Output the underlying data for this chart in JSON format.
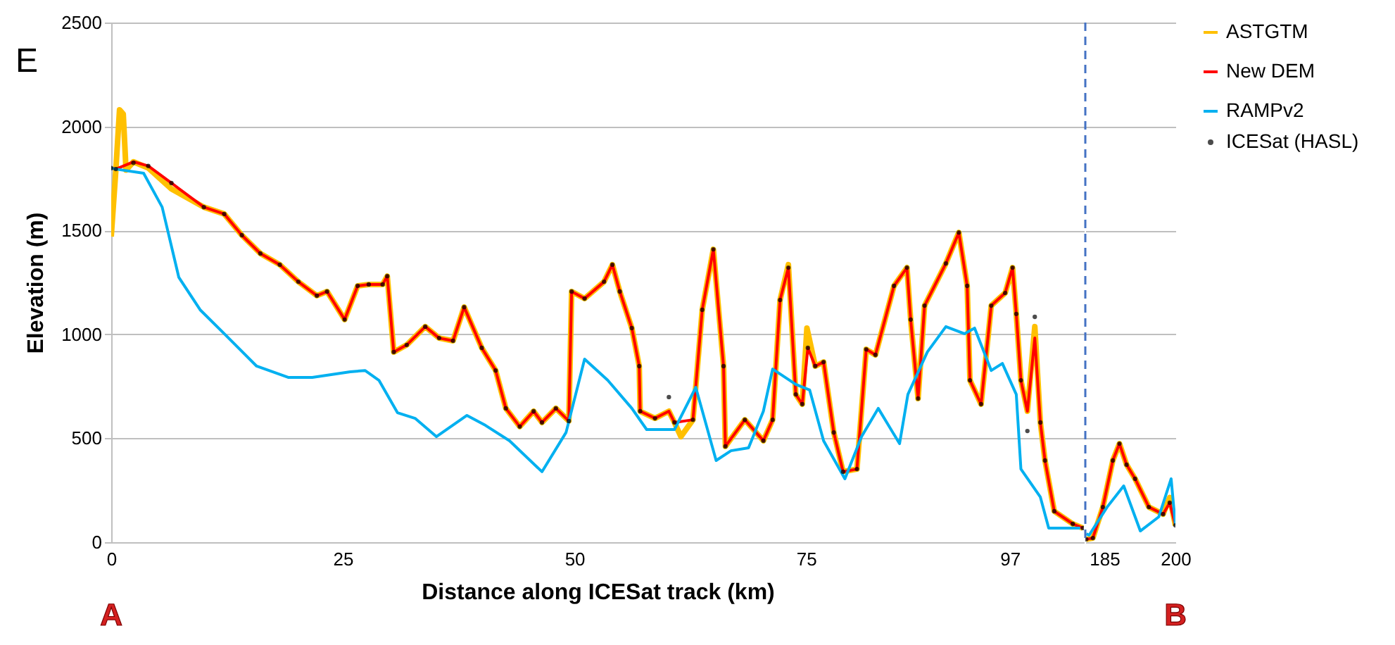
{
  "chart_data": [
    {
      "type": "line",
      "xlabel": "Distance along ICESat track (km)",
      "ylabel": "Elevation (m)",
      "xlim": [
        0,
        105
      ],
      "xticks": [
        0,
        25,
        50,
        75,
        97
      ],
      "ylim": [
        0,
        2500
      ],
      "yticks": [
        0,
        500,
        1000,
        1500,
        2000,
        2500
      ],
      "grid": "y",
      "tick_labels": "xy",
      "annotations": [
        "E",
        "A"
      ],
      "series": [
        {
          "color": "#ffc000",
          "x": [
            0,
            0.5,
            0.9,
            1.3,
            1.6,
            2.4,
            4,
            6.5,
            10,
            12.2,
            14.1,
            16.1,
            18.2,
            20.2,
            22.2,
            23.3,
            25.2,
            26.6,
            27.8,
            29.3,
            29.8,
            30.5,
            31.9,
            33.9,
            35.4,
            36.9,
            38.1,
            40,
            41.5,
            42.6,
            44.1,
            45.6,
            46.5,
            48,
            49.4,
            49.7,
            51.1,
            53.2,
            54.1,
            54.9,
            56.2,
            57,
            57.1,
            58.7,
            60.2,
            60.8,
            61.5,
            62.8,
            63.8,
            65,
            66.1,
            66.3,
            68.4,
            70.4,
            71.4,
            72.2,
            73.1,
            73.9,
            74.6,
            75.1,
            76,
            76.9,
            78,
            79,
            80.5,
            81.5,
            82.5,
            84.5,
            85.9,
            86.3,
            87.1,
            87.8,
            90.1,
            91.5,
            92.4,
            92.7,
            93.9,
            95,
            96.5,
            97.3,
            97.7,
            98.2,
            98.9,
            99.7,
            100.3,
            100.8,
            101.8,
            103.8,
            104.9
          ],
          "values": [
            1470,
            1790,
            2080,
            2060,
            1790,
            1830,
            1800,
            1700,
            1612,
            1579,
            1477,
            1389,
            1335,
            1253,
            1186,
            1206,
            1071,
            1233,
            1240,
            1240,
            1280,
            915,
            949,
            1037,
            982,
            969,
            1131,
            935,
            826,
            644,
            556,
            630,
            576,
            644,
            583,
            1206,
            1172,
            1253,
            1335,
            1206,
            1030,
            847,
            630,
            596,
            630,
            576,
            508,
            589,
            1118,
            1409,
            847,
            461,
            589,
            488,
            589,
            1165,
            1335,
            711,
            664,
            1030,
            847,
            867,
            528,
            339,
            352,
            928,
            901,
            1233,
            1321,
            1071,
            691,
            1138,
            1341,
            1490,
            1233,
            779,
            664,
            1138,
            1199,
            1321,
            1098,
            779,
            630,
            1037,
            576,
            393,
            149,
            88,
            68
          ]
        },
        {
          "color": "#ff0000",
          "x": [
            0,
            0.5,
            2.4,
            4,
            6.5,
            10,
            12.2,
            14.1,
            16.1,
            18.2,
            20.2,
            22.2,
            23.3,
            25.2,
            26.6,
            27.8,
            29.3,
            29.8,
            30.5,
            31.9,
            33.9,
            35.4,
            36.9,
            38.1,
            40,
            41.5,
            42.6,
            44.1,
            45.6,
            46.5,
            48,
            49.4,
            49.7,
            51.1,
            53.2,
            54.1,
            54.9,
            56.2,
            57,
            57.1,
            58.7,
            60.2,
            60.8,
            62.8,
            63.8,
            65,
            66.1,
            66.3,
            68.4,
            70.4,
            71.4,
            72.2,
            73.1,
            73.9,
            74.6,
            75.2,
            76,
            76.9,
            78,
            79,
            80.5,
            81.5,
            82.5,
            84.5,
            85.9,
            86.3,
            87.1,
            87.8,
            90.1,
            91.5,
            92.4,
            92.7,
            93.9,
            95,
            96.5,
            97.3,
            97.7,
            98.2,
            98.9,
            99.7,
            100.3,
            100.8,
            101.8,
            103.8,
            104.9
          ],
          "values": [
            1800,
            1795,
            1830,
            1810,
            1728,
            1612,
            1579,
            1477,
            1389,
            1335,
            1253,
            1186,
            1206,
            1071,
            1233,
            1240,
            1240,
            1280,
            915,
            949,
            1037,
            982,
            969,
            1131,
            935,
            826,
            644,
            556,
            630,
            576,
            644,
            583,
            1206,
            1172,
            1253,
            1335,
            1206,
            1030,
            847,
            630,
            596,
            630,
            576,
            589,
            1118,
            1409,
            847,
            461,
            589,
            488,
            589,
            1165,
            1321,
            711,
            664,
            935,
            847,
            867,
            528,
            339,
            352,
            928,
            901,
            1233,
            1321,
            1071,
            691,
            1138,
            1341,
            1490,
            1233,
            779,
            664,
            1138,
            1199,
            1321,
            1098,
            779,
            630,
            982,
            576,
            393,
            149,
            88,
            68
          ]
        },
        {
          "color": "#00b0f0",
          "x": [
            0,
            0.5,
            3.5,
            5.5,
            7.3,
            9.6,
            12.2,
            15.7,
            19.1,
            21.7,
            25.8,
            27.4,
            28.9,
            30.9,
            32.8,
            35.1,
            38.4,
            40.4,
            43,
            46.5,
            49.1,
            51.1,
            53.6,
            56.2,
            57.8,
            60.8,
            63.1,
            65.3,
            66.9,
            68.8,
            70.4,
            71.4,
            73.9,
            75.4,
            76.9,
            79.2,
            81,
            82.8,
            85.1,
            86,
            88.1,
            90.1,
            92.1,
            93.2,
            95,
            96.2,
            97.7,
            98.2,
            100.3,
            101.2,
            104.6
          ],
          "values": [
            1800,
            1795,
            1775,
            1612,
            1274,
            1118,
            1003,
            847,
            793,
            793,
            820,
            826,
            779,
            623,
            596,
            508,
            610,
            562,
            488,
            339,
            528,
            881,
            779,
            644,
            542,
            542,
            745,
            393,
            440,
            454,
            630,
            833,
            759,
            732,
            488,
            305,
            508,
            644,
            474,
            711,
            915,
            1037,
            1003,
            1030,
            826,
            860,
            711,
            352,
            217,
            68,
            68
          ]
        },
        {
          "type": "scatter",
          "marker": "circle",
          "color": "#000000",
          "x": [
            0,
            0.5,
            2.4,
            4,
            6.5,
            10,
            12.2,
            14.1,
            16.1,
            18.2,
            20.2,
            22.2,
            23.3,
            25.2,
            26.6,
            27.8,
            29.3,
            29.8,
            30.5,
            31.9,
            33.9,
            35.4,
            36.9,
            38.1,
            40,
            41.5,
            42.6,
            44.1,
            45.6,
            46.5,
            48,
            49.4,
            49.7,
            51.1,
            53.2,
            54.1,
            54.9,
            56.2,
            57,
            57.1,
            58.7,
            60.2,
            60.8,
            62.8,
            63.8,
            65,
            66.1,
            66.3,
            68.4,
            70.4,
            71.4,
            72.2,
            73.1,
            73.9,
            74.6,
            75.2,
            76,
            76.9,
            78,
            79,
            80.5,
            81.5,
            82.5,
            84.5,
            85.9,
            86.3,
            87.1,
            87.8,
            90.1,
            91.5,
            92.4,
            92.7,
            93.9,
            95,
            96.5,
            97.3,
            97.7,
            98.2,
            98.9,
            99.7,
            100.3,
            100.8,
            101.8,
            103.8,
            104.9
          ],
          "values": [
            1800,
            1795,
            1825,
            1810,
            1728,
            1612,
            1579,
            1477,
            1389,
            1335,
            1253,
            1186,
            1206,
            1071,
            1233,
            1240,
            1240,
            1280,
            915,
            949,
            1037,
            982,
            969,
            1131,
            935,
            826,
            644,
            556,
            630,
            576,
            644,
            583,
            1206,
            1172,
            1253,
            1335,
            1206,
            1030,
            847,
            630,
            596,
            698,
            576,
            589,
            1118,
            1409,
            847,
            461,
            589,
            488,
            589,
            1165,
            1321,
            711,
            664,
            935,
            847,
            867,
            528,
            339,
            352,
            928,
            901,
            1233,
            1321,
            1071,
            691,
            1138,
            1341,
            1490,
            1233,
            779,
            664,
            1138,
            1199,
            1321,
            1098,
            779,
            535,
            1084,
            576,
            393,
            149,
            88,
            68
          ]
        }
      ]
    },
    {
      "type": "line",
      "xlim": [
        181,
        200
      ],
      "xticks": [
        185,
        200
      ],
      "ylim": [
        0,
        2500
      ],
      "yticks": [
        0,
        500,
        1000,
        1500,
        2000,
        2500
      ],
      "grid": "y",
      "tick_labels": "x",
      "legend": "right",
      "annotations": [
        "B"
      ],
      "ref_lines": [
        {
          "axis": "x",
          "value": 181,
          "color": "#4472c4",
          "line_style": "dashed"
        }
      ],
      "series": [
        {
          "name": "ASTGTM",
          "color": "#ffc000",
          "x": [
            181.2,
            182.6,
            184.7,
            186.8,
            188.2,
            189.7,
            191.5,
            194.4,
            197.4,
            198.8,
            200
          ],
          "values": [
            14,
            20,
            169,
            393,
            474,
            373,
            305,
            169,
            135,
            215,
            81
          ]
        },
        {
          "name": "New DEM",
          "color": "#ff0000",
          "x": [
            181.2,
            182.6,
            184.7,
            186.8,
            188.2,
            189.7,
            191.5,
            194.4,
            197.4,
            198.8,
            200
          ],
          "values": [
            14,
            20,
            169,
            393,
            474,
            373,
            305,
            169,
            135,
            190,
            81
          ]
        },
        {
          "name": "RAMPv2",
          "color": "#00b0f0",
          "x": [
            181.2,
            181.8,
            185.6,
            189.1,
            192.6,
            196.5,
            199.1,
            200
          ],
          "values": [
            40,
            34,
            169,
            271,
            54,
            122,
            305,
            81
          ]
        },
        {
          "name": "ICESat (HASL)",
          "type": "scatter",
          "marker": "circle",
          "color": "#000000",
          "x": [
            181.2,
            182.6,
            184.7,
            186.8,
            188.2,
            189.7,
            191.5,
            194.4,
            197.4,
            198.8,
            200
          ],
          "values": [
            14,
            20,
            169,
            393,
            474,
            373,
            305,
            169,
            135,
            190,
            81
          ]
        }
      ]
    }
  ]
}
